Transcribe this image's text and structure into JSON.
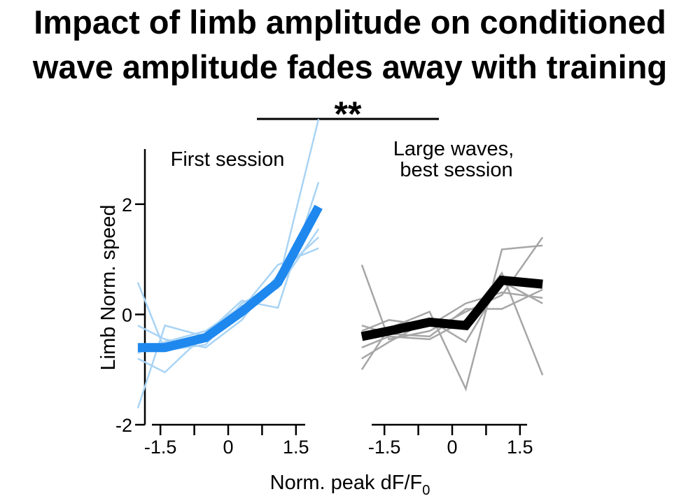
{
  "title_line1": "Impact of limb amplitude on conditioned",
  "title_line2": "wave amplitude fades away with training",
  "significance": "**",
  "ylabel": "Limb Norm. speed",
  "xlabel_main": "Norm. peak dF/F",
  "xlabel_sub": "0",
  "chart_data": [
    {
      "type": "line",
      "title": "First session",
      "xlabel": "Norm. peak dF/F0",
      "ylabel": "Limb Norm. speed",
      "ylim": [
        -2,
        3
      ],
      "yticks": [
        -2,
        0,
        2
      ],
      "yticklabels": [
        "-2",
        "0",
        "2"
      ],
      "xlim": [
        -2.2,
        2.2
      ],
      "xticks": [
        -1.5,
        0,
        1.5
      ],
      "xticklabels": [
        "-1.5",
        "0",
        "1.5"
      ],
      "mean_color": "#1e88ee",
      "trace_color": "#a9d4f5",
      "series": [
        {
          "role": "mean",
          "x": [
            -2.0,
            -1.4,
            -0.5,
            0.3,
            1.1,
            2.0
          ],
          "y": [
            -0.6,
            -0.6,
            -0.42,
            0.05,
            0.58,
            1.95
          ]
        },
        {
          "role": "trace",
          "x": [
            -2.0,
            -1.4,
            -0.5,
            0.3,
            1.1,
            2.0
          ],
          "y": [
            0.58,
            -0.65,
            -0.55,
            0.2,
            0.55,
            3.8
          ]
        },
        {
          "role": "trace",
          "x": [
            -2.0,
            -1.4,
            -0.5,
            0.3,
            1.1,
            2.0
          ],
          "y": [
            -1.7,
            -0.2,
            -0.4,
            0.1,
            0.9,
            1.2
          ]
        },
        {
          "role": "trace",
          "x": [
            -2.0,
            -1.4,
            -0.5,
            0.3,
            1.1,
            2.0
          ],
          "y": [
            -0.8,
            -1.05,
            -0.35,
            0.25,
            0.12,
            2.4
          ]
        },
        {
          "role": "trace",
          "x": [
            -2.0,
            -1.4,
            -0.5,
            0.3,
            1.1,
            2.0
          ],
          "y": [
            -0.2,
            -0.45,
            -0.6,
            -0.1,
            0.72,
            1.4
          ]
        },
        {
          "role": "trace",
          "x": [
            -2.0,
            -1.4,
            -0.5,
            0.3,
            1.1,
            2.0
          ],
          "y": [
            -0.7,
            -0.5,
            -0.3,
            0.15,
            0.48,
            1.55
          ]
        }
      ]
    },
    {
      "type": "line",
      "title": "Large waves,\nbest session",
      "xlim": [
        -2.2,
        2.2
      ],
      "xticks": [
        -1.5,
        0,
        1.5
      ],
      "xticklabels": [
        "-1.5",
        "0",
        "1.5"
      ],
      "ylim": [
        -2,
        3
      ],
      "mean_color": "#000000",
      "trace_color": "#a6a6a6",
      "series": [
        {
          "role": "mean",
          "x": [
            -2.0,
            -1.4,
            -0.5,
            0.3,
            1.1,
            2.0
          ],
          "y": [
            -0.4,
            -0.3,
            -0.14,
            -0.2,
            0.62,
            0.55
          ]
        },
        {
          "role": "trace",
          "x": [
            -2.0,
            -1.4,
            -0.5,
            0.3,
            1.1,
            2.0
          ],
          "y": [
            0.9,
            -0.45,
            -0.3,
            0.05,
            0.35,
            1.4
          ]
        },
        {
          "role": "trace",
          "x": [
            -2.0,
            -1.4,
            -0.5,
            0.3,
            1.1,
            2.0
          ],
          "y": [
            -1.0,
            -0.25,
            0.05,
            -1.35,
            1.18,
            1.25
          ]
        },
        {
          "role": "trace",
          "x": [
            -2.0,
            -1.4,
            -0.5,
            0.3,
            1.1,
            2.0
          ],
          "y": [
            -0.6,
            -0.4,
            -0.45,
            -0.1,
            0.75,
            -1.1
          ]
        },
        {
          "role": "trace",
          "x": [
            -2.0,
            -1.4,
            -0.5,
            0.3,
            1.1,
            2.0
          ],
          "y": [
            -0.3,
            -0.1,
            -0.2,
            0.2,
            0.4,
            0.3
          ]
        },
        {
          "role": "trace",
          "x": [
            -2.0,
            -1.4,
            -0.5,
            0.3,
            1.1,
            2.0
          ],
          "y": [
            -0.8,
            -0.5,
            -0.1,
            -0.5,
            0.6,
            0.2
          ]
        },
        {
          "role": "trace",
          "x": [
            -2.0,
            -1.4,
            -0.5,
            0.3,
            1.1,
            2.0
          ],
          "y": [
            -0.2,
            -0.35,
            -0.4,
            0.1,
            0.1,
            0.45
          ]
        }
      ]
    }
  ]
}
